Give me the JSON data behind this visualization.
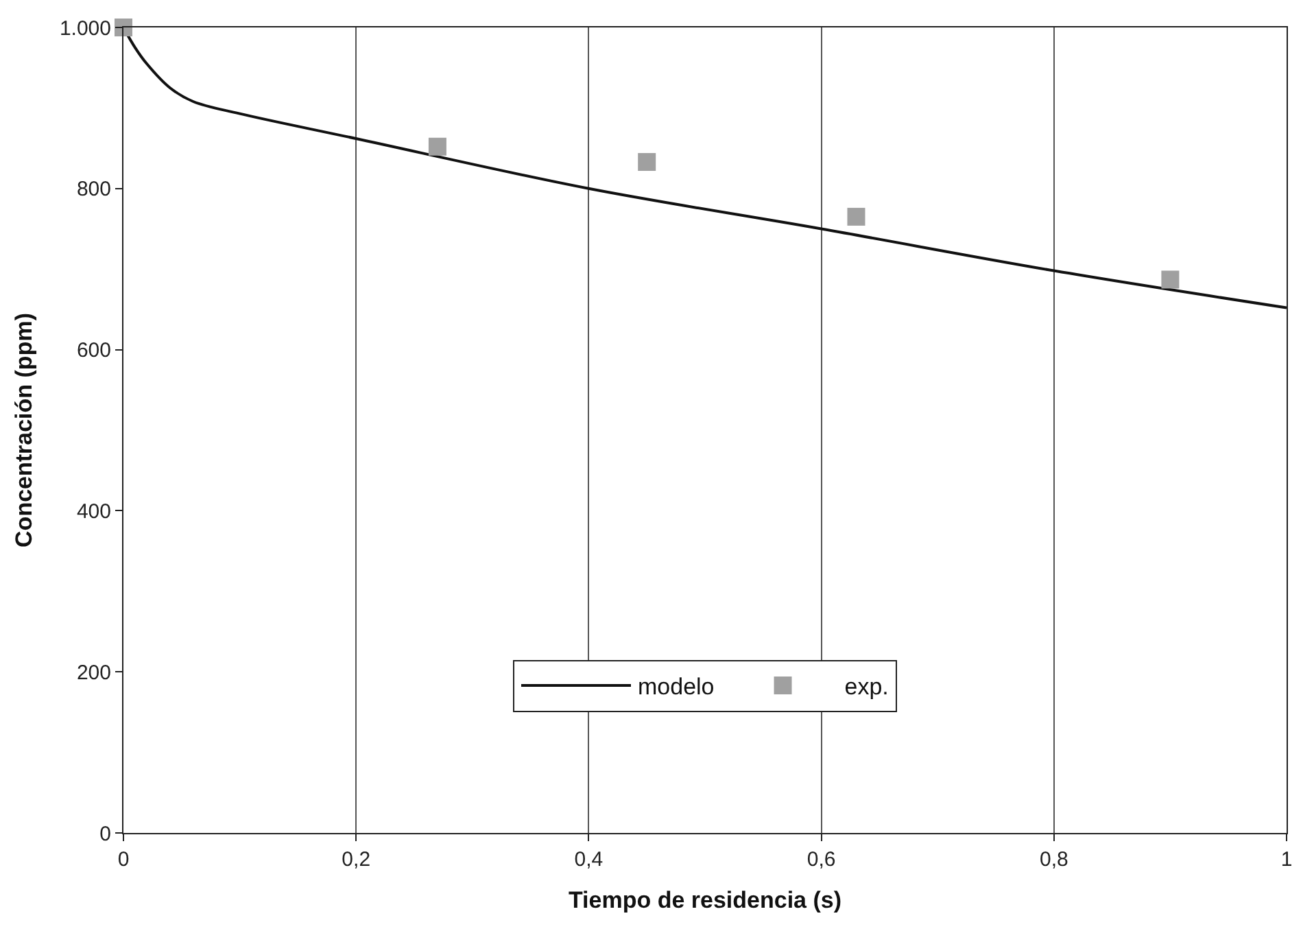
{
  "chart_data": {
    "type": "line",
    "xlabel": "Tiempo de residencia (s)",
    "ylabel": "Concentración (ppm)",
    "xlim": [
      0,
      1
    ],
    "ylim": [
      0,
      1000
    ],
    "xticks": [
      {
        "value": 0,
        "label": "0"
      },
      {
        "value": 0.2,
        "label": "0,2"
      },
      {
        "value": 0.4,
        "label": "0,4"
      },
      {
        "value": 0.6,
        "label": "0,6"
      },
      {
        "value": 0.8,
        "label": "0,8"
      },
      {
        "value": 1,
        "label": "1"
      }
    ],
    "yticks": [
      0,
      200,
      400,
      600,
      800,
      {
        "value": 1000,
        "label": "1.000"
      }
    ],
    "grid": "x",
    "legend": "bottom",
    "series": [
      {
        "name": "modelo",
        "color": "#111111",
        "marker": "none",
        "line_style": "solid",
        "x": [
          0,
          0.01,
          0.02,
          0.04,
          0.06,
          0.1,
          0.2,
          0.4,
          0.6,
          0.8,
          1
        ],
        "values": [
          1000,
          975,
          955,
          925,
          908,
          893,
          862,
          800,
          750,
          698,
          652
        ]
      },
      {
        "name": "exp.",
        "type": "scatter",
        "color": "#a0a0a0",
        "marker": "square",
        "x": [
          0,
          0.27,
          0.45,
          0.63,
          0.9
        ],
        "values": [
          1000,
          852,
          833,
          765,
          687
        ]
      }
    ]
  }
}
